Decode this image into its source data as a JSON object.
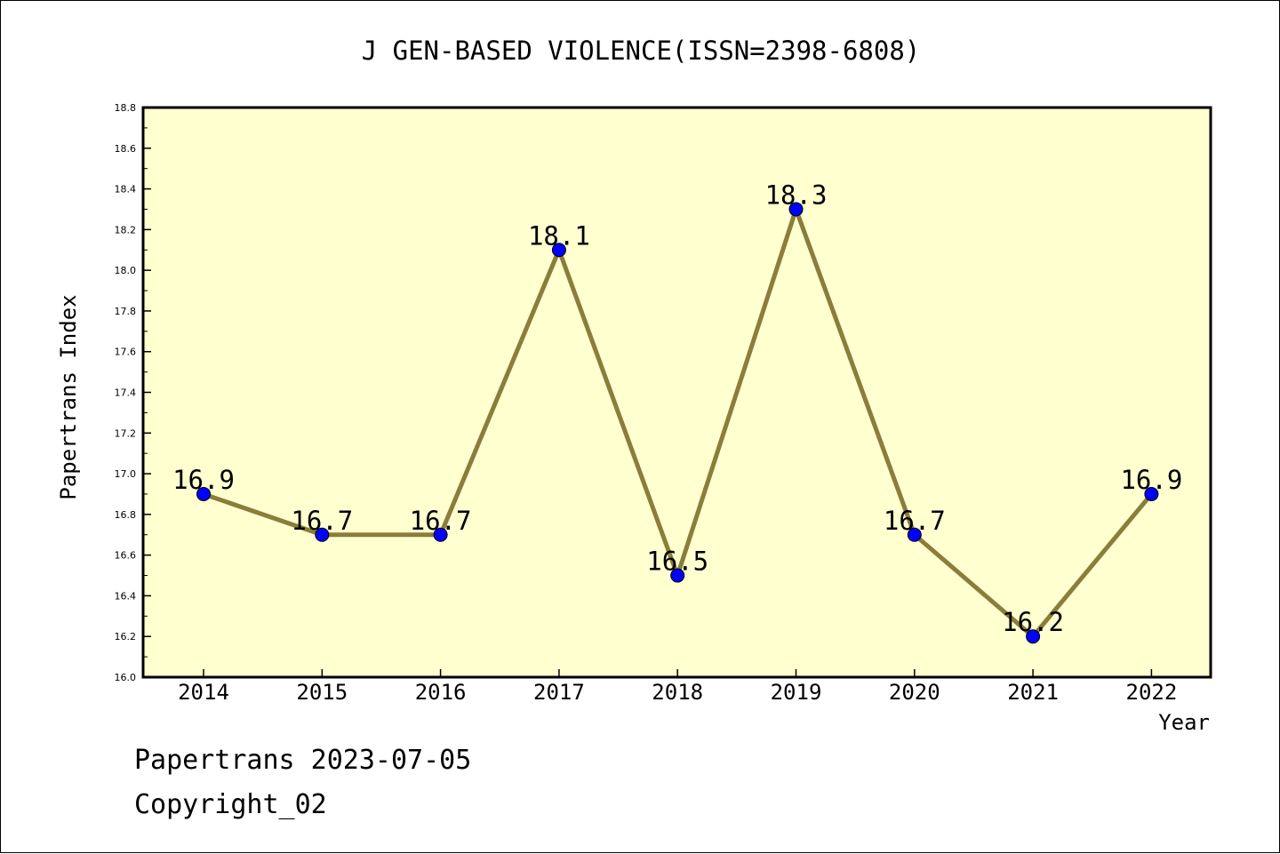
{
  "chart_data": {
    "type": "line",
    "title": "J GEN-BASED VIOLENCE(ISSN=2398-6808)",
    "xlabel": "Year",
    "ylabel": "Papertrans Index",
    "categories": [
      "2014",
      "2015",
      "2016",
      "2017",
      "2018",
      "2019",
      "2020",
      "2021",
      "2022"
    ],
    "values": [
      16.9,
      16.7,
      16.7,
      18.1,
      16.5,
      18.3,
      16.7,
      16.2,
      16.9
    ],
    "data_labels": [
      "16.9",
      "16.7",
      "16.7",
      "18.1",
      "16.5",
      "18.3",
      "16.7",
      "16.2",
      "16.9"
    ],
    "ylim": [
      16.0,
      18.8
    ],
    "y_ticks": [
      "16.0",
      "16.2",
      "16.4",
      "16.6",
      "16.8",
      "17.0",
      "17.2",
      "17.4",
      "17.6",
      "17.8",
      "18.0",
      "18.2",
      "18.4",
      "18.6",
      "18.8"
    ],
    "grid": false,
    "legend": "none",
    "colors": {
      "plot_background": "#ffffd0",
      "line": "#8b7d3a",
      "marker": "#0000ff",
      "axes": "#000000"
    }
  },
  "footer": {
    "line1": "Papertrans 2023-07-05",
    "line2": "Copyright_02"
  }
}
